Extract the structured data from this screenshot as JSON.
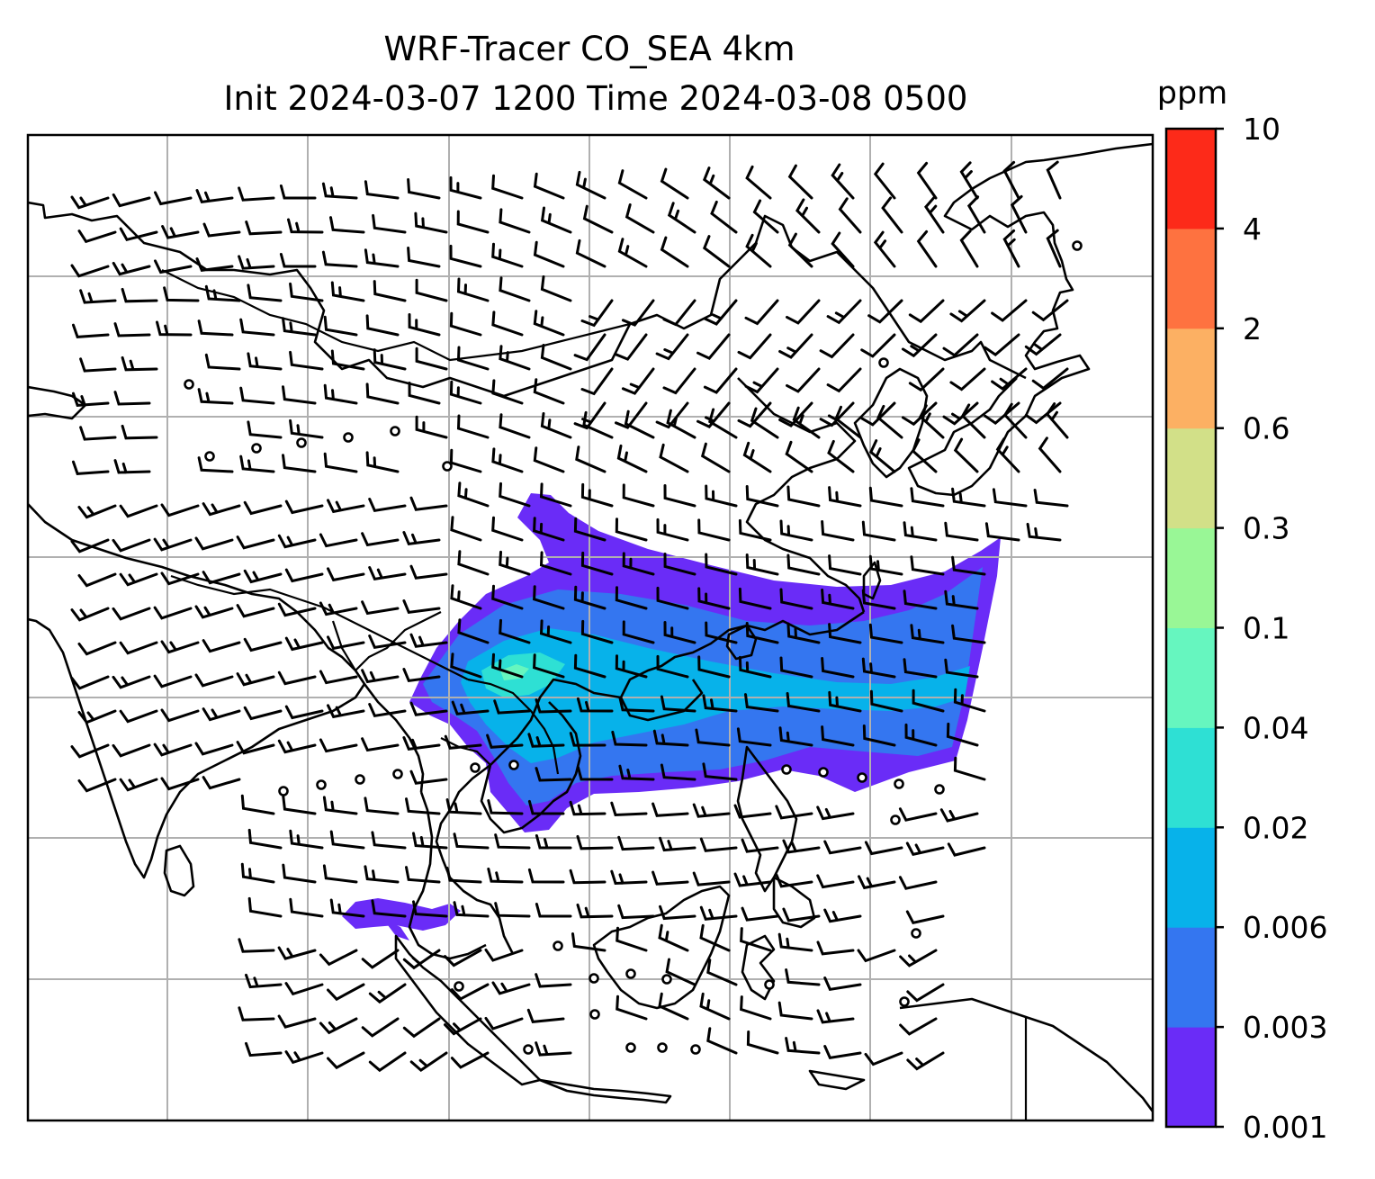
{
  "title": {
    "line1": "WRF-Tracer CO_SEA 4km",
    "line2": "Init 2024-03-07 1200 Time 2024-03-08 0500"
  },
  "colorbar": {
    "unit": "ppm",
    "levels": [
      {
        "label": "0.001",
        "color": "#6a2cf7"
      },
      {
        "label": "0.003",
        "color": "#3476f0"
      },
      {
        "label": "0.006",
        "color": "#07b2ea"
      },
      {
        "label": "0.02",
        "color": "#2ee0d4"
      },
      {
        "label": "0.04",
        "color": "#66f6bf"
      },
      {
        "label": "0.1",
        "color": "#99f796"
      },
      {
        "label": "0.3",
        "color": "#d2e088"
      },
      {
        "label": "0.6",
        "color": "#fcb063"
      },
      {
        "label": "2",
        "color": "#fe7240"
      },
      {
        "label": "4",
        "color": "#fd2a19"
      },
      {
        "label": "10",
        "color": null
      }
    ]
  },
  "map": {
    "projection": "mercator",
    "gridlines": true,
    "coastlines": true,
    "borders": true,
    "wind_barbs": true,
    "calm_circles": true
  }
}
